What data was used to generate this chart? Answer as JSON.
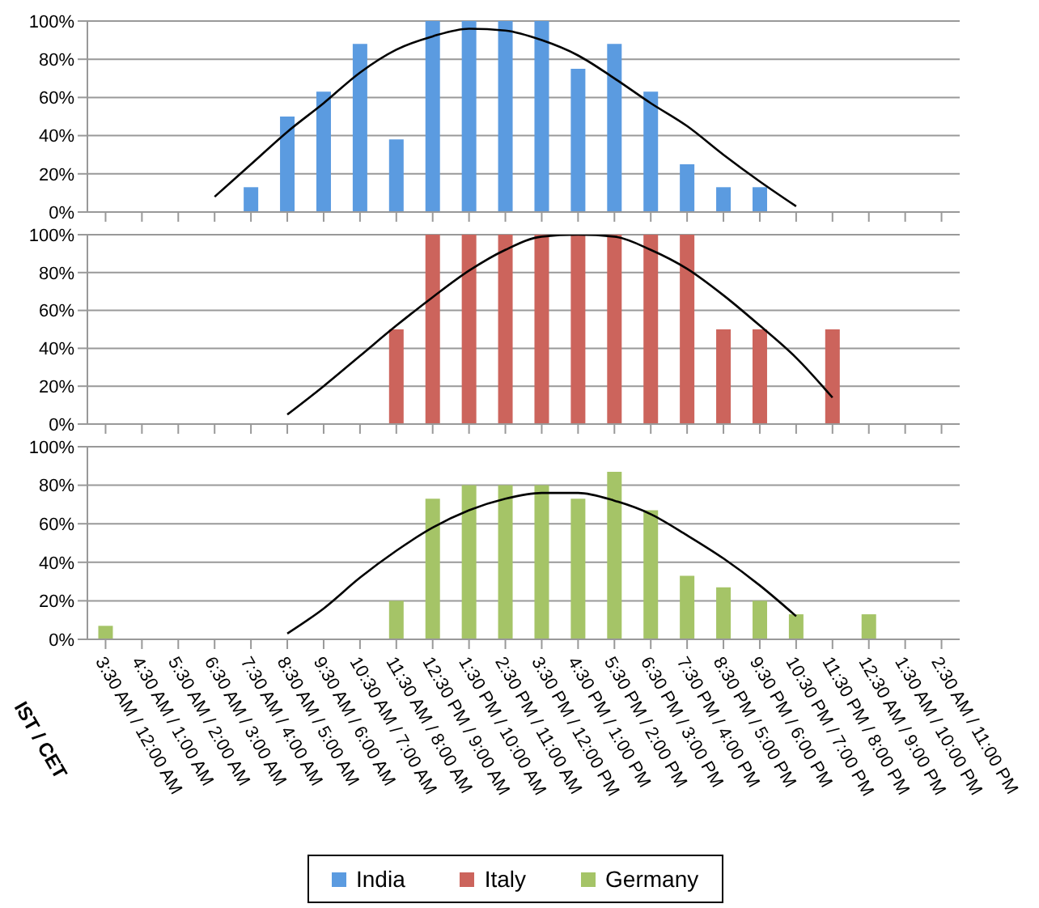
{
  "chart_data": [
    {
      "type": "bar",
      "categories": [
        null,
        null,
        null,
        null,
        null,
        null,
        null,
        null,
        null,
        null,
        null,
        null,
        null,
        null,
        null,
        null,
        null,
        null,
        null,
        null,
        null,
        null,
        null,
        null
      ],
      "series": [
        {
          "name": "India",
          "color": "#5b9be0",
          "values": [
            0,
            0,
            0,
            0,
            13,
            50,
            63,
            88,
            38,
            100,
            100,
            100,
            100,
            75,
            88,
            63,
            25,
            13,
            13,
            0,
            0,
            0,
            0,
            0
          ]
        },
        {
          "type": "line",
          "color": "#000000",
          "values": [
            null,
            null,
            null,
            8,
            25,
            42,
            57,
            73,
            85,
            92,
            96,
            95,
            90,
            82,
            70,
            57,
            45,
            30,
            16,
            3,
            null,
            null,
            null,
            null
          ]
        }
      ],
      "ylim": [
        0,
        100
      ],
      "yticks": [
        {
          "value": 0,
          "label": "0%"
        },
        {
          "value": 20,
          "label": "20%"
        },
        {
          "value": 40,
          "label": "40%"
        },
        {
          "value": 60,
          "label": "60%"
        },
        {
          "value": 80,
          "label": "80%"
        },
        {
          "value": 100,
          "label": "100%"
        }
      ],
      "grid": "y",
      "tick_labels": "y"
    },
    {
      "type": "bar",
      "categories": [
        null,
        null,
        null,
        null,
        null,
        null,
        null,
        null,
        null,
        null,
        null,
        null,
        null,
        null,
        null,
        null,
        null,
        null,
        null,
        null,
        null,
        null,
        null,
        null
      ],
      "series": [
        {
          "name": "Italy",
          "color": "#cc645c",
          "values": [
            0,
            0,
            0,
            0,
            0,
            0,
            0,
            0,
            50,
            100,
            100,
            100,
            100,
            100,
            100,
            100,
            100,
            50,
            50,
            0,
            50,
            0,
            0,
            0
          ]
        },
        {
          "type": "line",
          "color": "#000000",
          "values": [
            null,
            null,
            null,
            null,
            null,
            5,
            20,
            36,
            52,
            67,
            81,
            92,
            99,
            100,
            99,
            92,
            82,
            68,
            52,
            35,
            14,
            null,
            null,
            null
          ]
        }
      ],
      "ylim": [
        0,
        100
      ],
      "yticks": [
        {
          "value": 0,
          "label": "0%"
        },
        {
          "value": 20,
          "label": "20%"
        },
        {
          "value": 40,
          "label": "40%"
        },
        {
          "value": 60,
          "label": "60%"
        },
        {
          "value": 80,
          "label": "80%"
        },
        {
          "value": 100,
          "label": "100%"
        }
      ],
      "grid": "y",
      "tick_labels": "y"
    },
    {
      "type": "bar",
      "xlabel": "IST / CET",
      "categories": [
        "3:30 AM / 12:00 AM",
        "4:30 AM / 1:00 AM",
        "5:30 AM / 2:00 AM",
        "6:30 AM / 3:00 AM",
        "7:30 AM / 4:00 AM",
        "8:30 AM / 5:00 AM",
        "9:30 AM / 6:00 AM",
        "10:30 AM / 7:00 AM",
        "11:30 AM / 8:00 AM",
        "12:30 PM / 9:00 AM",
        "1:30 PM / 10:00 AM",
        "2:30 PM / 11:00 AM",
        "3:30 PM / 12:00 PM",
        "4:30 PM / 1:00 PM",
        "5:30 PM / 2:00 PM",
        "6:30 PM / 3:00 PM",
        "7:30 PM / 4:00 PM",
        "8:30 PM / 5:00 PM",
        "9:30 PM / 6:00 PM",
        "10:30 PM / 7:00 PM",
        "11:30 PM / 8:00 PM",
        "12:30 AM / 9:00 PM",
        "1:30 AM / 10:00 PM",
        "2:30 AM / 11:00 PM"
      ],
      "series": [
        {
          "name": "Germany",
          "color": "#a5c467",
          "values": [
            7,
            0,
            0,
            0,
            0,
            0,
            0,
            0,
            20,
            73,
            80,
            80,
            80,
            73,
            87,
            67,
            33,
            27,
            20,
            13,
            0,
            13,
            0,
            0
          ]
        },
        {
          "type": "line",
          "color": "#000000",
          "values": [
            null,
            null,
            null,
            null,
            null,
            3,
            16,
            32,
            46,
            58,
            67,
            73,
            76,
            76,
            72,
            65,
            54,
            42,
            28,
            12,
            null,
            null,
            null,
            null
          ]
        }
      ],
      "ylim": [
        0,
        100
      ],
      "yticks": [
        {
          "value": 0,
          "label": "0%"
        },
        {
          "value": 20,
          "label": "20%"
        },
        {
          "value": 40,
          "label": "40%"
        },
        {
          "value": 60,
          "label": "60%"
        },
        {
          "value": 80,
          "label": "80%"
        },
        {
          "value": 100,
          "label": "100%"
        }
      ],
      "grid": "y",
      "legend": "bottom"
    }
  ]
}
